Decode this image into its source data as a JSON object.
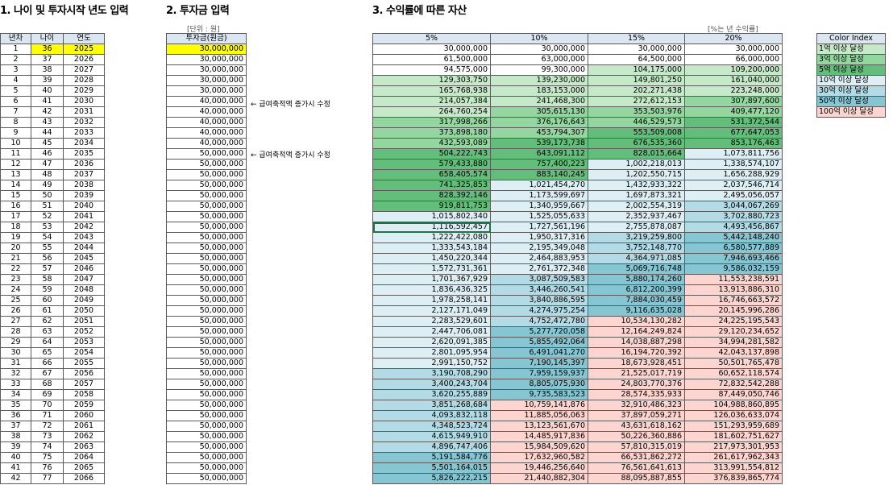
{
  "titles": {
    "s1": "1. 나이 및 투자시작 년도 입력",
    "s2": "2. 투자금 입력",
    "s3": "3. 수익률에 따른 자산"
  },
  "notes": {
    "unit": "[단위 : 원]",
    "rate": "[%는 년 수익률]"
  },
  "t1_headers": [
    "년차",
    "나이",
    "연도"
  ],
  "t2_header": "투자금(원금)",
  "t3_headers": [
    "5%",
    "10%",
    "15%",
    "20%"
  ],
  "annotations": [
    "← 급여축적액 증가시 수정",
    "← 급여축적액 증가시 수정"
  ],
  "legend": {
    "title": "Color Index",
    "items": [
      {
        "label": "1억 이상 달성",
        "color": "#c6e9c9"
      },
      {
        "label": "3억 이상 달성",
        "color": "#94d6a0"
      },
      {
        "label": "5억 이상 달성",
        "color": "#63be7b"
      },
      {
        "label": "10억 이상 달성",
        "color": "#ddeef4"
      },
      {
        "label": "30억 이상 달성",
        "color": "#b3dbe6"
      },
      {
        "label": "50억 이상 달성",
        "color": "#86c6d2"
      },
      {
        "label": "100억 이상 달성",
        "color": "#fcd5d0"
      }
    ]
  },
  "rows": [
    [
      1,
      36,
      2025,
      "30,000,000",
      "30,000,000",
      "30,000,000",
      "30,000,000",
      "30,000,000"
    ],
    [
      2,
      37,
      2026,
      "30,000,000",
      "61,500,000",
      "63,000,000",
      "64,500,000",
      "66,000,000"
    ],
    [
      3,
      38,
      2027,
      "30,000,000",
      "94,575,000",
      "99,300,000",
      "104,175,000",
      "109,200,000"
    ],
    [
      4,
      39,
      2028,
      "30,000,000",
      "129,303,750",
      "139,230,000",
      "149,801,250",
      "161,040,000"
    ],
    [
      5,
      40,
      2029,
      "30,000,000",
      "165,768,938",
      "183,153,000",
      "202,271,438",
      "223,248,000"
    ],
    [
      6,
      41,
      2030,
      "40,000,000",
      "214,057,384",
      "241,468,300",
      "272,612,153",
      "307,897,600"
    ],
    [
      7,
      42,
      2031,
      "40,000,000",
      "264,760,254",
      "305,615,130",
      "353,503,976",
      "409,477,120"
    ],
    [
      8,
      43,
      2032,
      "40,000,000",
      "317,998,266",
      "376,176,643",
      "446,529,573",
      "531,372,544"
    ],
    [
      9,
      44,
      2033,
      "40,000,000",
      "373,898,180",
      "453,794,307",
      "553,509,008",
      "677,647,053"
    ],
    [
      10,
      45,
      2034,
      "40,000,000",
      "432,593,089",
      "539,173,738",
      "676,535,360",
      "853,176,463"
    ],
    [
      11,
      46,
      2035,
      "50,000,000",
      "504,222,743",
      "643,091,112",
      "828,015,664",
      "1,073,811,756"
    ],
    [
      12,
      47,
      2036,
      "50,000,000",
      "579,433,880",
      "757,400,223",
      "1,002,218,013",
      "1,338,574,107"
    ],
    [
      13,
      48,
      2037,
      "50,000,000",
      "658,405,574",
      "883,140,245",
      "1,202,550,715",
      "1,656,288,929"
    ],
    [
      14,
      49,
      2038,
      "50,000,000",
      "741,325,853",
      "1,021,454,270",
      "1,432,933,322",
      "2,037,546,714"
    ],
    [
      15,
      50,
      2039,
      "50,000,000",
      "828,392,146",
      "1,173,599,697",
      "1,697,873,321",
      "2,495,056,057"
    ],
    [
      16,
      51,
      2040,
      "50,000,000",
      "919,811,753",
      "1,340,959,667",
      "2,002,554,319",
      "3,044,067,269"
    ],
    [
      17,
      52,
      2041,
      "50,000,000",
      "1,015,802,340",
      "1,525,055,633",
      "2,352,937,467",
      "3,702,880,723"
    ],
    [
      18,
      53,
      2042,
      "50,000,000",
      "1,116,592,457",
      "1,727,561,196",
      "2,755,878,087",
      "4,493,456,867"
    ],
    [
      19,
      54,
      2043,
      "50,000,000",
      "1,222,422,080",
      "1,950,317,316",
      "3,219,259,800",
      "5,442,148,240"
    ],
    [
      20,
      55,
      2044,
      "50,000,000",
      "1,333,543,184",
      "2,195,349,048",
      "3,752,148,770",
      "6,580,577,889"
    ],
    [
      21,
      56,
      2045,
      "50,000,000",
      "1,450,220,344",
      "2,464,883,953",
      "4,364,971,085",
      "7,946,693,466"
    ],
    [
      22,
      57,
      2046,
      "50,000,000",
      "1,572,731,361",
      "2,761,372,348",
      "5,069,716,748",
      "9,586,032,159"
    ],
    [
      23,
      58,
      2047,
      "50,000,000",
      "1,701,367,929",
      "3,087,509,583",
      "5,880,174,260",
      "11,553,238,591"
    ],
    [
      24,
      59,
      2048,
      "50,000,000",
      "1,836,436,325",
      "3,446,260,541",
      "6,812,200,399",
      "13,913,886,310"
    ],
    [
      25,
      60,
      2049,
      "50,000,000",
      "1,978,258,141",
      "3,840,886,595",
      "7,884,030,459",
      "16,746,663,572"
    ],
    [
      26,
      61,
      2050,
      "50,000,000",
      "2,127,171,049",
      "4,274,975,254",
      "9,116,635,028",
      "20,145,996,286"
    ],
    [
      27,
      62,
      2051,
      "50,000,000",
      "2,283,529,601",
      "4,752,472,780",
      "10,534,130,282",
      "24,225,195,543"
    ],
    [
      28,
      63,
      2052,
      "50,000,000",
      "2,447,706,081",
      "5,277,720,058",
      "12,164,249,824",
      "29,120,234,652"
    ],
    [
      29,
      64,
      2053,
      "50,000,000",
      "2,620,091,385",
      "5,855,492,064",
      "14,038,887,298",
      "34,994,281,582"
    ],
    [
      30,
      65,
      2054,
      "50,000,000",
      "2,801,095,954",
      "6,491,041,270",
      "16,194,720,392",
      "42,043,137,898"
    ],
    [
      31,
      66,
      2055,
      "50,000,000",
      "2,991,150,752",
      "7,190,145,397",
      "18,673,928,451",
      "50,501,765,478"
    ],
    [
      32,
      67,
      2056,
      "50,000,000",
      "3,190,708,290",
      "7,959,159,937",
      "21,525,017,719",
      "60,652,118,574"
    ],
    [
      33,
      68,
      2057,
      "50,000,000",
      "3,400,243,704",
      "8,805,075,930",
      "24,803,770,376",
      "72,832,542,288"
    ],
    [
      34,
      69,
      2058,
      "50,000,000",
      "3,620,255,889",
      "9,735,583,523",
      "28,574,335,933",
      "87,449,050,746"
    ],
    [
      35,
      70,
      2059,
      "50,000,000",
      "3,851,268,684",
      "10,759,141,876",
      "32,910,486,323",
      "104,988,860,895"
    ],
    [
      36,
      71,
      2060,
      "50,000,000",
      "4,093,832,118",
      "11,885,056,063",
      "37,897,059,271",
      "126,036,633,074"
    ],
    [
      37,
      72,
      2061,
      "50,000,000",
      "4,348,523,724",
      "13,123,561,670",
      "43,631,618,162",
      "151,293,959,689"
    ],
    [
      38,
      73,
      2062,
      "50,000,000",
      "4,615,949,910",
      "14,485,917,836",
      "50,226,360,886",
      "181,602,751,627"
    ],
    [
      39,
      74,
      2063,
      "50,000,000",
      "4,896,747,406",
      "15,984,509,620",
      "57,810,315,019",
      "217,973,301,953"
    ],
    [
      40,
      75,
      2064,
      "50,000,000",
      "5,191,584,776",
      "17,632,960,582",
      "66,531,862,272",
      "261,617,962,343"
    ],
    [
      41,
      76,
      2065,
      "50,000,000",
      "5,501,164,015",
      "19,446,256,640",
      "76,561,641,613",
      "313,991,554,812"
    ],
    [
      42,
      77,
      2066,
      "50,000,000",
      "5,826,222,215",
      "21,440,882,304",
      "88,095,887,855",
      "376,839,865,774"
    ]
  ]
}
